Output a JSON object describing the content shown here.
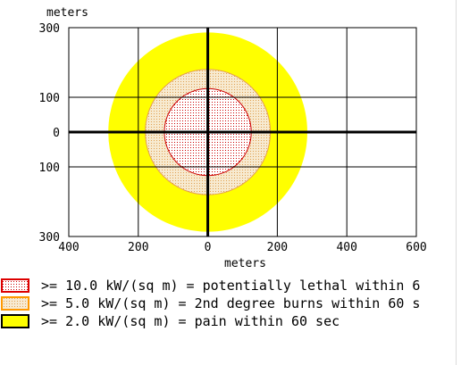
{
  "chart_data": {
    "type": "threat-zone-plot",
    "x_axis": {
      "label": "meters",
      "range": [
        -400,
        600
      ],
      "tick_values": [
        -400,
        -200,
        0,
        200,
        400,
        600
      ],
      "tick_labels": [
        "400",
        "200",
        "0",
        "200",
        "400",
        "600"
      ]
    },
    "y_axis": {
      "label": "meters",
      "range": [
        -300,
        300
      ],
      "tick_values": [
        300,
        100,
        0,
        -100,
        -300
      ],
      "tick_labels": [
        "300",
        "100",
        "0",
        "100",
        "300"
      ]
    },
    "grid": true,
    "source_point": [
      0,
      0
    ],
    "zones": [
      {
        "threshold": ">= 2.0 kW/(sq m)",
        "radius": 285,
        "fill": "#ffff00",
        "border": "#ffff00",
        "pattern": "solid",
        "legend": ">= 2.0 kW/(sq m) = pain within 60 sec",
        "legend_border": "#000000"
      },
      {
        "threshold": ">= 5.0 kW/(sq m)",
        "radius": 180,
        "fill": "#f0dcb4",
        "border": "#e6a050",
        "pattern": "dotted",
        "legend": ">= 5.0 kW/(sq m) = 2nd degree burns within 60 s",
        "legend_border": "#ff9900"
      },
      {
        "threshold": ">= 10.0 kW/(sq m)",
        "radius": 125,
        "fill": "#ffffff",
        "border": "#cc0000",
        "pattern": "dotted-red",
        "legend": ">= 10.0 kW/(sq m) = potentially lethal within 6",
        "legend_border": "#dd0000"
      }
    ]
  }
}
